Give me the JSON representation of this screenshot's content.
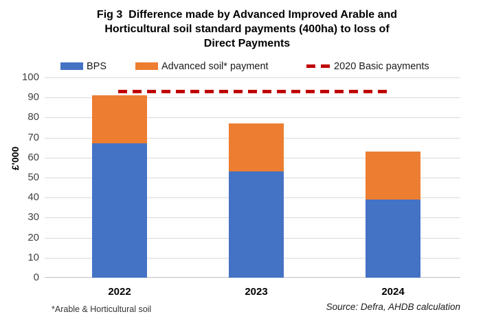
{
  "title": {
    "lines": [
      "Fig 3  Difference made by Advanced Improved Arable and",
      "Horticultural soil standard payments (400ha) to loss of",
      "Direct Payments"
    ]
  },
  "legend": {
    "items": [
      {
        "label": "BPS",
        "marker": "swatch",
        "color": "#4472C4"
      },
      {
        "label": "Advanced soil* payment",
        "marker": "swatch",
        "color": "#ED7D31"
      },
      {
        "label": "2020 Basic payments",
        "marker": "dashes",
        "color": "#C00000"
      }
    ]
  },
  "y_axis": {
    "title": "£'000"
  },
  "footnote": "*Arable & Horticultural soil",
  "source": "Source: Defra, AHDB calculation",
  "chart_data": {
    "type": "bar",
    "subtype": "stacked",
    "title": "Fig 3  Difference made by Advanced Improved Arable and Horticultural soil standard payments (400ha) to loss of Direct Payments",
    "categories": [
      "2022",
      "2023",
      "2024"
    ],
    "series": [
      {
        "name": "BPS",
        "color": "#4472C4",
        "values": [
          67,
          53,
          39
        ]
      },
      {
        "name": "Advanced soil* payment",
        "color": "#ED7D31",
        "values": [
          24,
          24,
          24
        ]
      }
    ],
    "stack_totals": [
      91,
      77,
      63
    ],
    "reference_line": {
      "name": "2020 Basic payments",
      "value": 93,
      "color": "#C00000",
      "style": "dashed"
    },
    "xlabel": "",
    "ylabel": "£'000",
    "ylim": [
      0,
      100
    ],
    "ytick_interval": 10,
    "grid": true,
    "legend_position": "top",
    "colors": {
      "axis_line": "#bfbfbf",
      "gridline": "#d9d9d9"
    }
  }
}
